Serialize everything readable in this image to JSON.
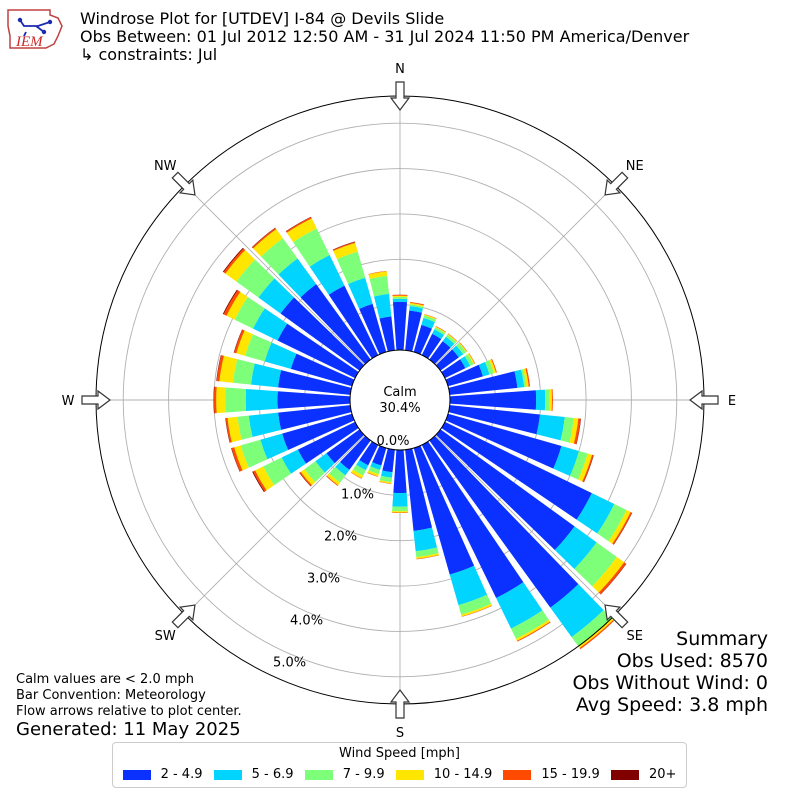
{
  "header": {
    "title": "Windrose Plot for [UTDEV] I-84 @ Devils Slide",
    "obs_between": "Obs Between: 01 Jul 2012 12:50 AM - 31 Jul 2024 11:50 PM America/Denver",
    "constraints": "↳ constraints: Jul",
    "logo_text": "IEM"
  },
  "notes": {
    "line1": "Calm values are < 2.0 mph",
    "line2": "Bar Convention: Meteorology",
    "line3": "Flow arrows relative to plot center.",
    "generated": "Generated: 11 May 2025"
  },
  "summary": {
    "heading": "Summary",
    "obs_used": "Obs Used: 8570",
    "obs_without_wind": "Obs Without Wind: 0",
    "avg_speed": "Avg Speed: 3.8 mph"
  },
  "chart_data": {
    "type": "windrose",
    "calm_label": "Calm",
    "calm_value": "30.4%",
    "radial_labels": [
      "0.0%",
      "1.0%",
      "2.0%",
      "3.0%",
      "4.0%",
      "5.0%"
    ],
    "rlim": [
      0,
      5.6
    ],
    "rings": [
      1,
      2,
      3,
      4,
      5
    ],
    "compass": [
      {
        "label": "N",
        "angle": 0
      },
      {
        "label": "NE",
        "angle": 45
      },
      {
        "label": "E",
        "angle": 90
      },
      {
        "label": "SE",
        "angle": 135
      },
      {
        "label": "S",
        "angle": 180
      },
      {
        "label": "SW",
        "angle": 225
      },
      {
        "label": "W",
        "angle": 270
      },
      {
        "label": "NW",
        "angle": 315
      }
    ],
    "legend_title": "Wind Speed [mph]",
    "bins": [
      {
        "label": "2 - 4.9",
        "color": "#0a31ff"
      },
      {
        "label": "5 - 6.9",
        "color": "#00d4ff"
      },
      {
        "label": "7 - 9.9",
        "color": "#7dff7a"
      },
      {
        "label": "10 - 14.9",
        "color": "#ffe600"
      },
      {
        "label": "15 - 19.9",
        "color": "#ff4a00"
      },
      {
        "label": "20+",
        "color": "#800000"
      }
    ],
    "directions_deg": [
      0,
      10,
      20,
      30,
      40,
      50,
      60,
      70,
      80,
      90,
      100,
      110,
      120,
      130,
      140,
      150,
      160,
      170,
      180,
      190,
      200,
      210,
      220,
      230,
      240,
      250,
      260,
      270,
      280,
      290,
      300,
      310,
      320,
      330,
      340,
      350
    ],
    "cumulative": [
      [
        1.06,
        1.13,
        1.17,
        1.2,
        1.22,
        1.22
      ],
      [
        0.88,
        0.98,
        1.02,
        1.05,
        1.07,
        1.07
      ],
      [
        0.62,
        0.78,
        0.84,
        0.86,
        0.87,
        0.87
      ],
      [
        0.52,
        0.63,
        0.68,
        0.7,
        0.71,
        0.71
      ],
      [
        0.5,
        0.62,
        0.68,
        0.7,
        0.71,
        0.71
      ],
      [
        0.5,
        0.62,
        0.7,
        0.72,
        0.73,
        0.73
      ],
      [
        0.5,
        0.62,
        0.7,
        0.73,
        0.74,
        0.74
      ],
      [
        0.8,
        0.95,
        1.05,
        1.1,
        1.12,
        1.12
      ],
      [
        1.5,
        1.65,
        1.7,
        1.75,
        1.78,
        1.78
      ],
      [
        1.9,
        2.1,
        2.2,
        2.25,
        2.27,
        2.27
      ],
      [
        2.0,
        2.55,
        2.75,
        2.85,
        2.9,
        2.91
      ],
      [
        2.6,
        3.0,
        3.2,
        3.3,
        3.33,
        3.34
      ],
      [
        3.6,
        4.15,
        4.45,
        4.55,
        4.58,
        4.59
      ],
      [
        3.65,
        4.25,
        4.8,
        5.0,
        5.05,
        5.06
      ],
      [
        4.55,
        5.35,
        5.6,
        5.65,
        5.68,
        5.68
      ],
      [
        3.75,
        4.5,
        4.75,
        4.8,
        4.82,
        4.82
      ],
      [
        2.9,
        3.6,
        3.82,
        3.86,
        3.87,
        3.87
      ],
      [
        1.8,
        2.25,
        2.38,
        2.42,
        2.43,
        2.43
      ],
      [
        0.95,
        1.25,
        1.35,
        1.38,
        1.39,
        1.39
      ],
      [
        0.5,
        0.62,
        0.72,
        0.75,
        0.76,
        0.76
      ],
      [
        0.4,
        0.5,
        0.6,
        0.65,
        0.66,
        0.66
      ],
      [
        0.5,
        0.62,
        0.75,
        0.82,
        0.83,
        0.83
      ],
      [
        0.8,
        0.95,
        1.15,
        1.22,
        1.24,
        1.24
      ],
      [
        0.9,
        1.2,
        1.5,
        1.6,
        1.63,
        1.64
      ],
      [
        1.4,
        1.8,
        2.25,
        2.45,
        2.5,
        2.52
      ],
      [
        1.6,
        2.1,
        2.55,
        2.7,
        2.76,
        2.77
      ],
      [
        1.6,
        2.25,
        2.5,
        2.72,
        2.76,
        2.77
      ],
      [
        1.6,
        2.3,
        2.75,
        2.95,
        3.0,
        3.01
      ],
      [
        1.6,
        2.2,
        2.6,
        2.9,
        2.96,
        2.97
      ],
      [
        1.4,
        2.0,
        2.45,
        2.65,
        2.7,
        2.71
      ],
      [
        1.9,
        2.5,
        2.95,
        3.15,
        3.22,
        3.24
      ],
      [
        2.15,
        2.75,
        3.35,
        3.65,
        3.7,
        3.72
      ],
      [
        2.05,
        2.75,
        3.3,
        3.55,
        3.58,
        3.59
      ],
      [
        1.7,
        2.45,
        3.1,
        3.35,
        3.38,
        3.39
      ],
      [
        1.1,
        1.7,
        2.3,
        2.5,
        2.52,
        2.53
      ],
      [
        0.75,
        1.25,
        1.65,
        1.75,
        1.76,
        1.76
      ]
    ]
  }
}
